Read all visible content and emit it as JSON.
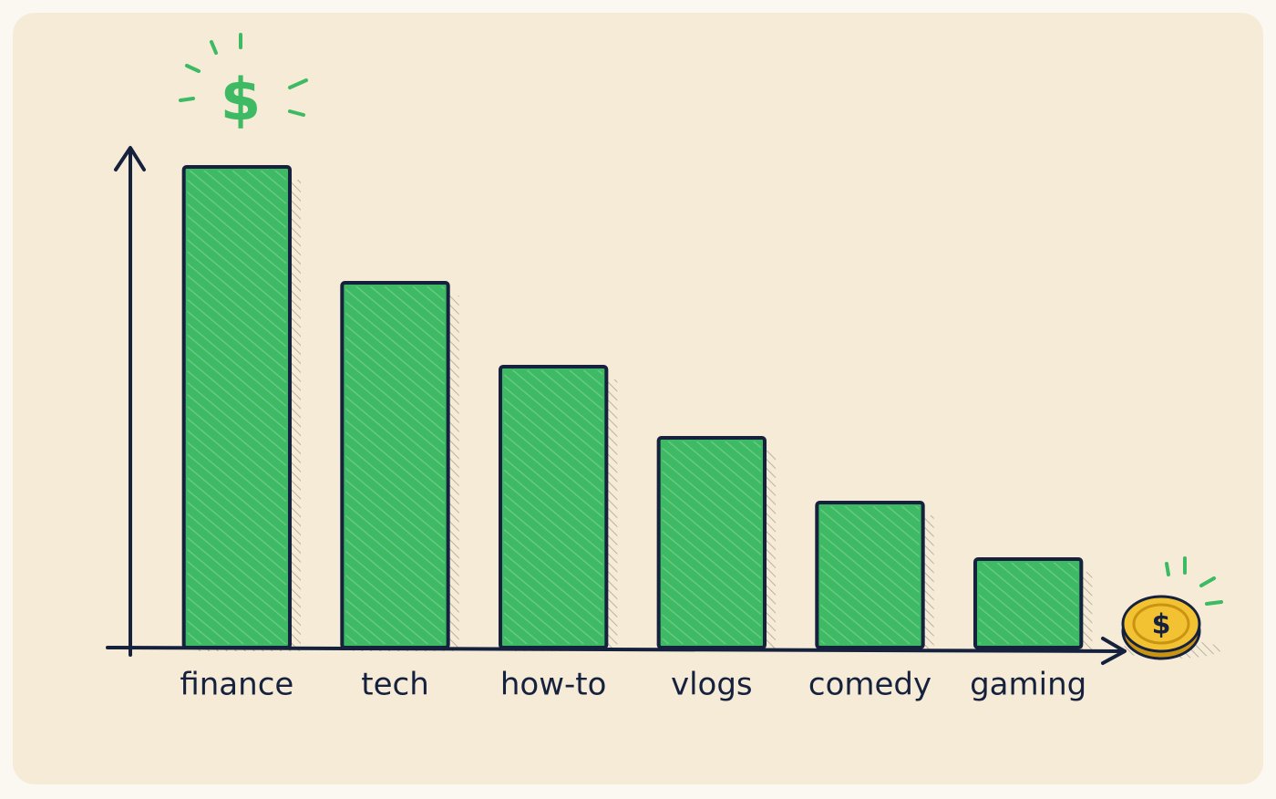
{
  "chart_data": {
    "type": "bar",
    "categories": [
      "finance",
      "tech",
      "how-to",
      "vlogs",
      "comedy",
      "gaming"
    ],
    "values": [
      527,
      400,
      308,
      230,
      159,
      97
    ],
    "color": "#3dba63",
    "ylim": [
      0,
      550
    ],
    "annotations": [
      "$",
      "$"
    ]
  }
}
